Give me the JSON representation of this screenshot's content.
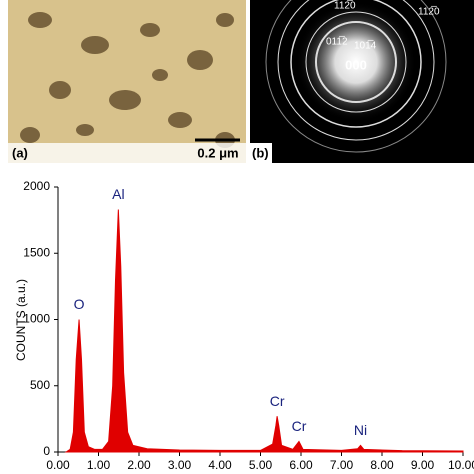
{
  "panels": {
    "a_label": "(a)",
    "scale_bar": "0.2 μm",
    "b_label": "(b)",
    "spots": [
      "112̅0",
      "112̅0",
      "011̅2",
      "101̅4",
      "000"
    ]
  },
  "chart_data": {
    "type": "area",
    "ylabel": "COUNTS (a.u.)",
    "color": "#e00000",
    "x": [
      0.2,
      0.3,
      0.38,
      0.45,
      0.52,
      0.58,
      0.65,
      0.75,
      0.9,
      1.1,
      1.25,
      1.35,
      1.42,
      1.49,
      1.55,
      1.62,
      1.72,
      1.85,
      2.2,
      3,
      4,
      5,
      5.3,
      5.38,
      5.41,
      5.45,
      5.52,
      5.8,
      5.95,
      6.05,
      7,
      7.4,
      7.47,
      7.55,
      8.5,
      10
    ],
    "values": [
      0,
      20,
      150,
      700,
      1000,
      700,
      150,
      40,
      20,
      20,
      80,
      500,
      1300,
      1830,
      1400,
      600,
      150,
      50,
      25,
      15,
      12,
      12,
      60,
      200,
      270,
      200,
      50,
      20,
      80,
      20,
      12,
      25,
      50,
      20,
      10,
      8
    ],
    "annotations": [
      {
        "text": "O",
        "x": 0.52,
        "y": 1000
      },
      {
        "text": "Al",
        "x": 1.49,
        "y": 1830
      },
      {
        "text": "Cr",
        "x": 5.41,
        "y": 270
      },
      {
        "text": "Cr",
        "x": 5.95,
        "y": 80
      },
      {
        "text": "Ni",
        "x": 7.47,
        "y": 50
      }
    ],
    "xlim": [
      0,
      10
    ],
    "ylim": [
      0,
      2000
    ],
    "xticks": [
      {
        "value": 0,
        "label": "0.00"
      },
      {
        "value": 1,
        "label": "1.00"
      },
      {
        "value": 2,
        "label": "2.00"
      },
      {
        "value": 3,
        "label": "3.00"
      },
      {
        "value": 4,
        "label": "4.00"
      },
      {
        "value": 5,
        "label": "5.00"
      },
      {
        "value": 6,
        "label": "6.00"
      },
      {
        "value": 7,
        "label": "7.00"
      },
      {
        "value": 8,
        "label": "8.00"
      },
      {
        "value": 9,
        "label": "9.00"
      },
      {
        "value": 10,
        "label": "10.00"
      }
    ],
    "yticks": [
      0,
      500,
      1000,
      1500,
      2000
    ]
  }
}
